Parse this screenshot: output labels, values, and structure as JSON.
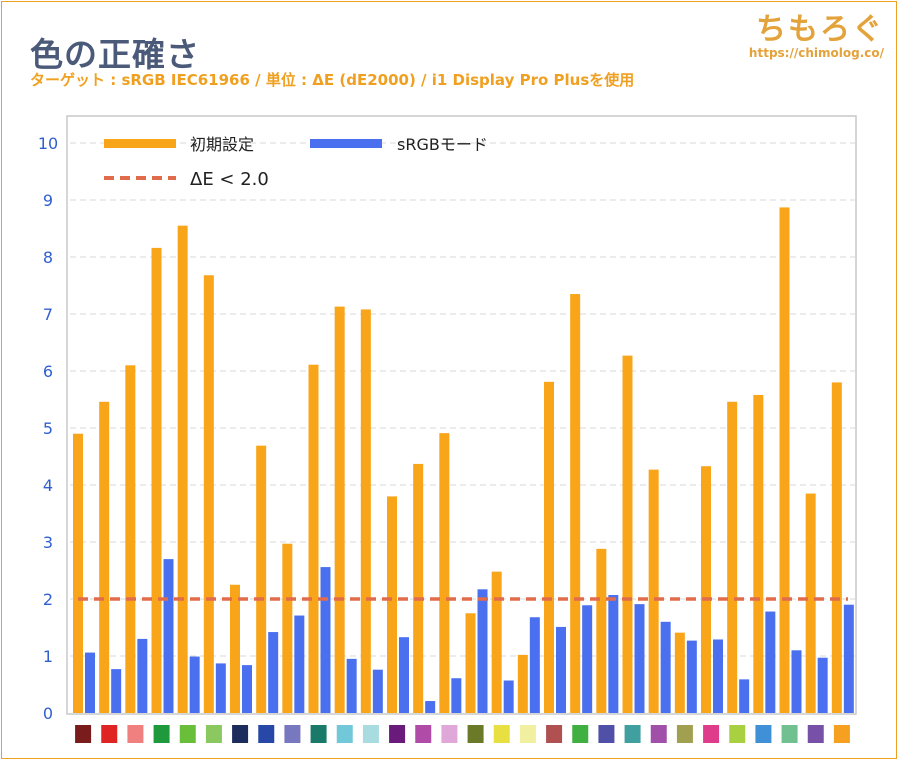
{
  "header": {
    "title": "色の正確さ",
    "subtitle": "ターゲット : sRGB IEC61966 / 単位 : ΔE (dE2000) / i1 Display Pro Plusを使用",
    "brand": "ちもろぐ",
    "brand_url": "https://chimolog.co/"
  },
  "chart_data": {
    "type": "bar",
    "ylim": [
      0,
      10
    ],
    "yticks": [
      "0",
      "1",
      "2",
      "3",
      "4",
      "5",
      "6",
      "7",
      "8",
      "9",
      "10"
    ],
    "grid": true,
    "legend_position": "top-left",
    "series": [
      {
        "name": "初期設定",
        "color": "#f9a51a",
        "values": [
          4.9,
          5.46,
          6.1,
          8.16,
          8.55,
          7.68,
          2.25,
          4.69,
          2.97,
          6.11,
          7.13,
          7.08,
          3.8,
          4.37,
          4.91,
          1.75,
          2.48,
          1.02,
          5.81,
          7.35,
          2.88,
          6.27,
          4.27,
          1.41,
          4.33,
          5.46,
          5.58,
          8.87,
          3.85,
          5.8
        ]
      },
      {
        "name": "sRGBモード",
        "color": "#4a70f0",
        "values": [
          1.06,
          0.77,
          1.3,
          2.7,
          0.99,
          0.87,
          0.84,
          1.42,
          1.71,
          2.56,
          0.95,
          0.76,
          1.33,
          0.21,
          0.61,
          2.17,
          0.57,
          1.68,
          1.51,
          1.89,
          2.07,
          1.91,
          1.6,
          1.27,
          1.29,
          0.59,
          1.78,
          1.1,
          0.97,
          1.9
        ]
      }
    ],
    "threshold": {
      "name": "ΔE < 2.0",
      "value": 2.0,
      "color": "#e06c4c"
    },
    "swatch_colors": [
      "#7a1c1c",
      "#e02424",
      "#f08080",
      "#1e9a3c",
      "#6abf3a",
      "#8cc860",
      "#1c2c5c",
      "#2848a8",
      "#7878c0",
      "#1a7a6a",
      "#70c8d8",
      "#a8dce0",
      "#6a1a7a",
      "#b04ca8",
      "#e0a8d8",
      "#6a7a28",
      "#e8e040",
      "#f0f0a0",
      "#b05050",
      "#40b040",
      "#5050a8",
      "#40a0a0",
      "#a050a8",
      "#a0a050",
      "#e03c8c",
      "#a8d040",
      "#4090d8",
      "#70c090",
      "#7850a8",
      "#f5a020"
    ]
  }
}
